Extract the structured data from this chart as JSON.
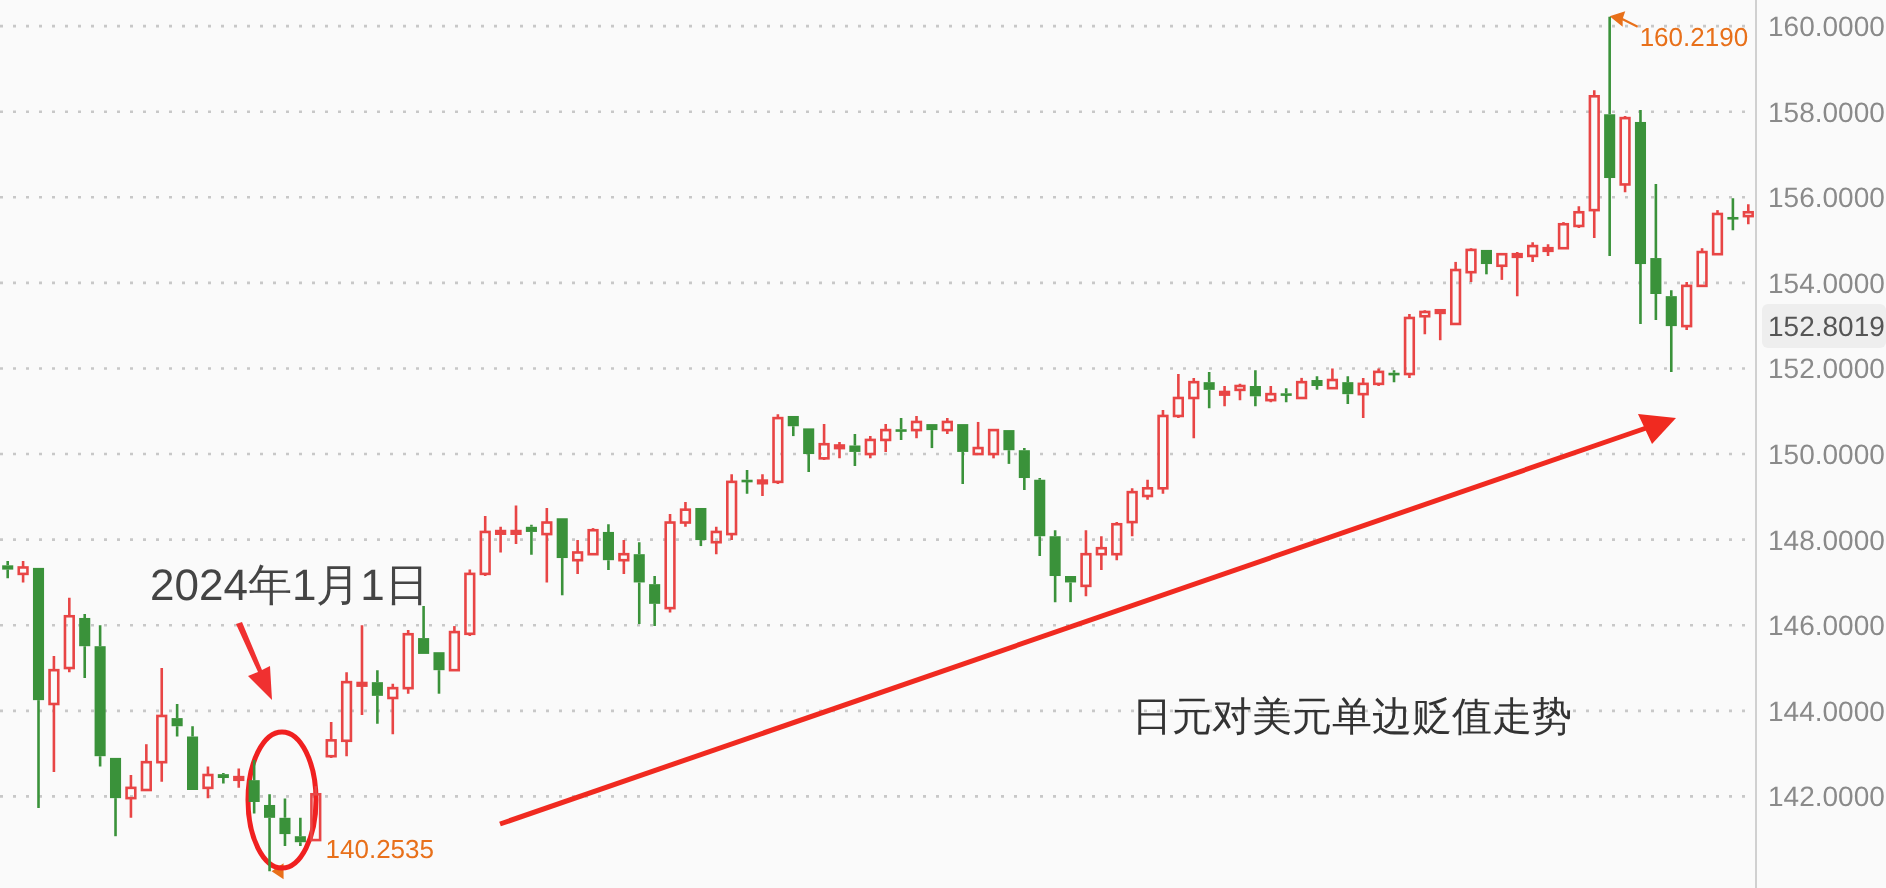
{
  "chart_data": {
    "type": "candlestick",
    "categories": [
      null,
      null,
      null,
      null,
      null,
      null,
      null,
      null,
      null,
      null,
      null,
      null,
      null,
      null,
      null,
      null,
      null,
      null,
      null,
      null,
      null,
      null,
      null,
      null,
      null,
      null,
      null,
      null,
      null,
      null,
      null,
      null,
      null,
      null,
      null,
      null,
      null,
      null,
      null,
      null,
      null,
      null,
      null,
      null,
      null,
      null,
      null,
      null,
      null,
      null,
      null,
      null,
      null,
      null,
      null,
      null,
      null,
      null,
      null,
      null,
      null,
      null,
      null,
      null,
      null,
      null,
      null,
      null,
      null,
      null,
      null,
      null,
      null,
      null,
      null,
      null,
      null,
      null,
      null,
      null,
      null,
      null,
      null,
      null,
      null,
      null,
      null,
      null,
      null,
      null,
      null,
      null,
      null,
      null,
      null,
      null,
      null,
      null,
      null,
      null,
      null,
      null,
      null,
      null,
      null,
      null,
      null,
      null,
      null,
      null,
      null,
      null,
      null,
      null
    ],
    "ohlc": [
      [
        147.4,
        147.5,
        147.1,
        147.3
      ],
      [
        147.2,
        147.5,
        147.0,
        147.35
      ],
      [
        147.34,
        147.34,
        141.73,
        144.25
      ],
      [
        144.16,
        145.28,
        142.57,
        144.95
      ],
      [
        145.0,
        146.64,
        144.9,
        146.21
      ],
      [
        146.17,
        146.26,
        144.77,
        145.51
      ],
      [
        145.51,
        146.0,
        142.7,
        142.94
      ],
      [
        142.9,
        142.9,
        141.07,
        141.96
      ],
      [
        141.96,
        142.5,
        141.5,
        142.2
      ],
      [
        142.15,
        143.22,
        142.15,
        142.8
      ],
      [
        142.8,
        145.0,
        142.34,
        143.88
      ],
      [
        143.83,
        144.16,
        143.4,
        143.64
      ],
      [
        143.4,
        143.64,
        142.15,
        142.15
      ],
      [
        142.2,
        142.7,
        141.96,
        142.5
      ],
      [
        142.52,
        142.55,
        142.3,
        142.43
      ],
      [
        142.4,
        142.65,
        142.2,
        142.45
      ],
      [
        142.38,
        142.85,
        141.6,
        141.87
      ],
      [
        141.8,
        142.05,
        140.2535,
        141.5
      ],
      [
        141.5,
        141.95,
        140.84,
        141.12
      ],
      [
        141.07,
        141.5,
        140.84,
        140.93
      ],
      [
        140.98,
        142.24,
        140.98,
        142.05
      ],
      [
        142.94,
        143.74,
        142.9,
        143.31
      ],
      [
        143.3,
        144.9,
        142.94,
        144.67
      ],
      [
        144.6,
        146.0,
        143.9,
        144.65
      ],
      [
        144.67,
        144.95,
        143.7,
        144.35
      ],
      [
        144.3,
        144.63,
        143.45,
        144.53
      ],
      [
        144.53,
        145.89,
        144.4,
        145.79
      ],
      [
        145.7,
        146.45,
        145.33,
        145.33
      ],
      [
        145.37,
        145.37,
        144.4,
        144.95
      ],
      [
        144.95,
        145.98,
        144.95,
        145.84
      ],
      [
        145.8,
        147.3,
        145.75,
        147.2
      ],
      [
        147.2,
        148.55,
        147.15,
        148.18
      ],
      [
        148.15,
        148.3,
        147.7,
        148.2
      ],
      [
        148.15,
        148.8,
        147.9,
        148.2
      ],
      [
        148.3,
        148.35,
        147.65,
        148.18
      ],
      [
        148.13,
        148.74,
        147.0,
        148.4
      ],
      [
        148.5,
        148.5,
        146.7,
        147.57
      ],
      [
        147.52,
        147.99,
        147.2,
        147.7
      ],
      [
        147.66,
        148.27,
        147.66,
        148.22
      ],
      [
        148.18,
        148.36,
        147.29,
        147.52
      ],
      [
        147.52,
        147.99,
        147.2,
        147.66
      ],
      [
        147.66,
        147.94,
        146.03,
        147.0
      ],
      [
        146.96,
        147.15,
        145.98,
        146.5
      ],
      [
        146.4,
        148.6,
        146.3,
        148.4
      ],
      [
        148.4,
        148.88,
        148.3,
        148.7
      ],
      [
        148.74,
        148.74,
        147.85,
        147.99
      ],
      [
        147.94,
        148.3,
        147.66,
        148.18
      ],
      [
        148.13,
        149.53,
        147.99,
        149.35
      ],
      [
        149.4,
        149.63,
        149.07,
        149.38
      ],
      [
        149.33,
        149.53,
        149.02,
        149.38
      ],
      [
        149.35,
        150.93,
        149.3,
        150.84
      ],
      [
        150.89,
        150.89,
        150.42,
        150.65
      ],
      [
        150.6,
        150.6,
        149.58,
        150.0
      ],
      [
        149.9,
        150.7,
        149.86,
        150.23
      ],
      [
        150.16,
        150.28,
        149.9,
        150.2
      ],
      [
        150.2,
        150.47,
        149.72,
        150.05
      ],
      [
        150.0,
        150.42,
        149.9,
        150.33
      ],
      [
        150.33,
        150.7,
        150.05,
        150.56
      ],
      [
        150.58,
        150.84,
        150.33,
        150.55
      ],
      [
        150.56,
        150.89,
        150.37,
        150.75
      ],
      [
        150.7,
        150.7,
        150.14,
        150.56
      ],
      [
        150.56,
        150.84,
        150.47,
        150.75
      ],
      [
        150.7,
        150.7,
        149.3,
        150.05
      ],
      [
        150.0,
        150.75,
        150.0,
        150.14
      ],
      [
        150.0,
        150.56,
        149.9,
        150.56
      ],
      [
        150.56,
        150.56,
        149.77,
        150.09
      ],
      [
        150.09,
        150.14,
        149.16,
        149.44
      ],
      [
        149.4,
        149.44,
        147.62,
        148.08
      ],
      [
        148.08,
        148.22,
        146.54,
        147.15
      ],
      [
        147.15,
        147.15,
        146.54,
        147.0
      ],
      [
        146.92,
        148.22,
        146.68,
        147.66
      ],
      [
        147.66,
        148.08,
        147.29,
        147.8
      ],
      [
        147.66,
        148.41,
        147.52,
        148.36
      ],
      [
        148.41,
        149.2,
        148.08,
        149.11
      ],
      [
        149.02,
        149.4,
        148.93,
        149.2
      ],
      [
        149.2,
        151.03,
        149.07,
        150.89
      ],
      [
        150.89,
        151.87,
        150.84,
        151.31
      ],
      [
        151.31,
        151.78,
        150.37,
        151.68
      ],
      [
        151.68,
        151.92,
        151.07,
        151.5
      ],
      [
        151.4,
        151.59,
        151.12,
        151.45
      ],
      [
        151.5,
        151.64,
        151.26,
        151.59
      ],
      [
        151.59,
        151.96,
        151.12,
        151.35
      ],
      [
        151.26,
        151.59,
        151.21,
        151.4
      ],
      [
        151.42,
        151.54,
        151.21,
        151.38
      ],
      [
        151.31,
        151.78,
        151.31,
        151.68
      ],
      [
        151.73,
        151.82,
        151.5,
        151.59
      ],
      [
        151.54,
        152.0,
        151.54,
        151.73
      ],
      [
        151.68,
        151.82,
        151.17,
        151.4
      ],
      [
        151.4,
        151.78,
        150.84,
        151.64
      ],
      [
        151.64,
        152.0,
        151.59,
        151.92
      ],
      [
        151.9,
        151.96,
        151.68,
        151.85
      ],
      [
        151.87,
        153.27,
        151.78,
        153.18
      ],
      [
        153.22,
        153.36,
        152.8,
        153.32
      ],
      [
        153.3,
        153.36,
        152.66,
        153.36
      ],
      [
        153.04,
        154.49,
        153.04,
        154.3
      ],
      [
        154.25,
        154.81,
        154.02,
        154.77
      ],
      [
        154.77,
        154.77,
        154.2,
        154.44
      ],
      [
        154.4,
        154.67,
        154.07,
        154.67
      ],
      [
        154.62,
        154.72,
        153.69,
        154.67
      ],
      [
        154.63,
        154.95,
        154.49,
        154.86
      ],
      [
        154.77,
        154.9,
        154.63,
        154.81
      ],
      [
        154.81,
        155.42,
        154.81,
        155.37
      ],
      [
        155.33,
        155.79,
        155.28,
        155.65
      ],
      [
        155.7,
        158.5,
        155.05,
        158.36
      ],
      [
        157.94,
        160.219,
        154.63,
        156.45
      ],
      [
        156.3,
        157.9,
        156.12,
        157.85
      ],
      [
        157.76,
        158.04,
        153.04,
        154.44
      ],
      [
        154.58,
        156.31,
        153.13,
        153.74
      ],
      [
        153.69,
        153.83,
        151.92,
        152.99
      ],
      [
        152.99,
        154.02,
        152.9,
        153.93
      ],
      [
        153.93,
        154.81,
        153.93,
        154.72
      ],
      [
        154.67,
        155.7,
        154.67,
        155.61
      ],
      [
        155.54,
        155.98,
        155.23,
        155.5
      ],
      [
        155.56,
        155.84,
        155.37,
        155.65
      ]
    ],
    "colors": [
      "#3a923a",
      "#e84545",
      "#3a923a",
      "#e84545",
      "#e84545",
      "#3a923a",
      "#3a923a",
      "#3a923a",
      "#e84545",
      "#e84545",
      "#e84545",
      "#3a923a",
      "#3a923a",
      "#e84545",
      "#3a923a",
      "#e84545",
      "#3a923a",
      "#3a923a",
      "#3a923a",
      "#3a923a",
      "#e84545",
      "#e84545",
      "#e84545",
      "#e84545",
      "#3a923a",
      "#e84545",
      "#e84545",
      "#3a923a",
      "#3a923a",
      "#e84545",
      "#e84545",
      "#e84545",
      "#e84545",
      "#e84545",
      "#3a923a",
      "#e84545",
      "#3a923a",
      "#e84545",
      "#e84545",
      "#3a923a",
      "#e84545",
      "#3a923a",
      "#3a923a",
      "#e84545",
      "#e84545",
      "#3a923a",
      "#e84545",
      "#e84545",
      "#3a923a",
      "#e84545",
      "#e84545",
      "#3a923a",
      "#3a923a",
      "#e84545",
      "#e84545",
      "#3a923a",
      "#e84545",
      "#e84545",
      "#3a923a",
      "#e84545",
      "#3a923a",
      "#e84545",
      "#3a923a",
      "#e84545",
      "#e84545",
      "#3a923a",
      "#3a923a",
      "#3a923a",
      "#3a923a",
      "#3a923a",
      "#e84545",
      "#e84545",
      "#e84545",
      "#e84545",
      "#e84545",
      "#e84545",
      "#e84545",
      "#e84545",
      "#3a923a",
      "#e84545",
      "#e84545",
      "#3a923a",
      "#e84545",
      "#3a923a",
      "#e84545",
      "#3a923a",
      "#e84545",
      "#3a923a",
      "#e84545",
      "#e84545",
      "#3a923a",
      "#e84545",
      "#e84545",
      "#e84545",
      "#e84545",
      "#e84545",
      "#3a923a",
      "#e84545",
      "#e84545",
      "#e84545",
      "#e84545",
      "#e84545",
      "#e84545",
      "#e84545",
      "#3a923a",
      "#e84545",
      "#3a923a",
      "#3a923a",
      "#3a923a",
      "#e84545",
      "#e84545",
      "#e84545",
      "#3a923a",
      "#e84545"
    ],
    "ylim": [
      139.86,
      160.61
    ],
    "yticks": [
      {
        "value": 142,
        "label": "142.0000"
      },
      {
        "value": 144,
        "label": "144.0000"
      },
      {
        "value": 146,
        "label": "146.0000"
      },
      {
        "value": 148,
        "label": "148.0000"
      },
      {
        "value": 150,
        "label": "150.0000"
      },
      {
        "value": 152,
        "label": "152.0000"
      },
      {
        "value": 154,
        "label": "154.0000"
      },
      {
        "value": 156,
        "label": "156.0000"
      },
      {
        "value": 158,
        "label": "158.0000"
      },
      {
        "value": 160,
        "label": "160.0000"
      }
    ],
    "grid": "y",
    "tick_labels": "y",
    "annotations": [
      "2024年1月1日",
      "日元对美元单边贬值走势",
      "160.2190",
      "140.2535",
      "152.8019"
    ]
  }
}
